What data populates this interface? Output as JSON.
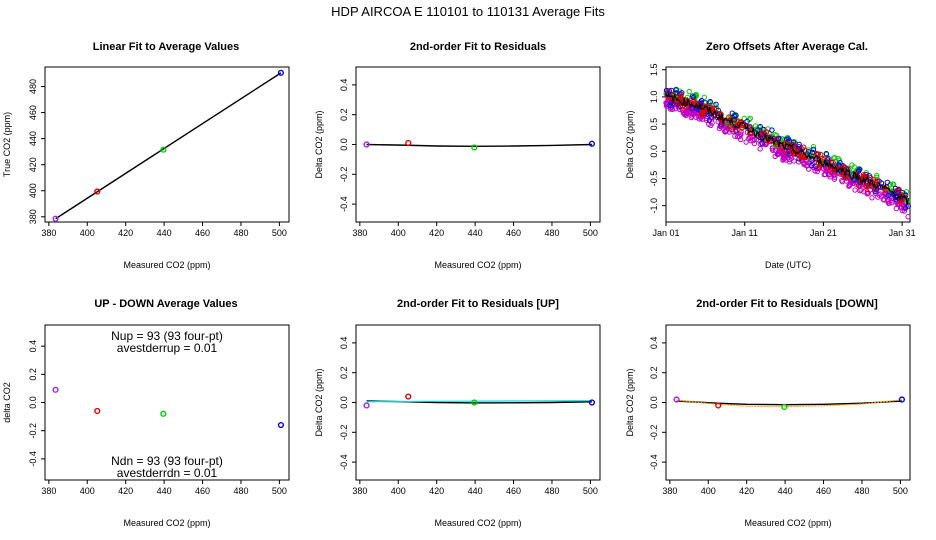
{
  "page_title": "HDP   AIRCOA E   110101 to 110131   Average Fits",
  "colors": {
    "purple": "#a020f0",
    "red": "#e00000",
    "green": "#00cc00",
    "blue": "#0000dd",
    "black": "#000000",
    "cyan": "#00e0e0",
    "orange": "#ffa500",
    "magenta": "#c000c0"
  },
  "chart_data": [
    {
      "type": "scatter",
      "title": "Linear Fit to Average Values",
      "xlabel": "Measured CO2 (ppm)",
      "ylabel": "True CO2 (ppm)",
      "xlim": [
        378,
        505
      ],
      "ylim": [
        376,
        495
      ],
      "xticks": [
        380,
        400,
        420,
        440,
        460,
        480,
        500
      ],
      "yticks": [
        380,
        400,
        420,
        440,
        460,
        480
      ],
      "points": [
        {
          "x": 383.5,
          "y": 378.5,
          "color": "purple"
        },
        {
          "x": 405.2,
          "y": 399.4,
          "color": "red"
        },
        {
          "x": 439.6,
          "y": 431.5,
          "color": "green"
        },
        {
          "x": 500.8,
          "y": 490.5,
          "color": "blue"
        }
      ],
      "lines": [
        {
          "x": [
            383.5,
            500.8
          ],
          "y": [
            378.5,
            490.5
          ],
          "color": "black"
        }
      ]
    },
    {
      "type": "scatter",
      "title": "2nd-order Fit to Residuals",
      "xlabel": "Measured CO2 (ppm)",
      "ylabel": "Delta CO2 (ppm)",
      "xlim": [
        378,
        505
      ],
      "ylim": [
        -0.52,
        0.52
      ],
      "xticks": [
        380,
        400,
        420,
        440,
        460,
        480,
        500
      ],
      "yticks": [
        -0.4,
        -0.2,
        0.0,
        0.2,
        0.4
      ],
      "points": [
        {
          "x": 383.5,
          "y": 0.0,
          "color": "purple"
        },
        {
          "x": 405.2,
          "y": 0.01,
          "color": "red"
        },
        {
          "x": 439.6,
          "y": -0.02,
          "color": "green"
        },
        {
          "x": 500.8,
          "y": 0.005,
          "color": "blue"
        }
      ],
      "lines": [
        {
          "x": [
            383.5,
            405,
            420,
            440,
            460,
            480,
            500.8
          ],
          "y": [
            0.0,
            -0.005,
            -0.01,
            -0.012,
            -0.01,
            -0.006,
            0.0
          ],
          "color": "black"
        }
      ]
    },
    {
      "type": "scatter",
      "title": "Zero Offsets After Average Cal.",
      "xlabel": "Date (UTC)",
      "ylabel": "Delta CO2 (ppm)",
      "xlim": [
        "Jan 01",
        "Jan 32"
      ],
      "ylim": [
        -1.3,
        1.55
      ],
      "xticks": [
        "Jan 01",
        "Jan 11",
        "Jan 21",
        "Jan 31"
      ],
      "yticks": [
        -1.0,
        -0.5,
        0.0,
        0.5,
        1.0,
        1.5
      ],
      "trend": {
        "x": [
          "Jan 01",
          "Jan 05",
          "Jan 09",
          "Jan 11",
          "Jan 15",
          "Jan 21",
          "Jan 25",
          "Jan 29",
          "Jan 32"
        ],
        "y": [
          1.0,
          0.85,
          0.55,
          0.45,
          0.15,
          -0.2,
          -0.45,
          -0.7,
          -0.95
        ]
      },
      "series_colors": [
        "magenta",
        "green",
        "blue",
        "red",
        "black"
      ]
    },
    {
      "type": "scatter",
      "title": "UP - DOWN Average Values",
      "xlabel": "Measured CO2 (ppm)",
      "ylabel": "delta CO2",
      "xlim": [
        378,
        505
      ],
      "ylim": [
        -0.55,
        0.55
      ],
      "xticks": [
        380,
        400,
        420,
        440,
        460,
        480,
        500
      ],
      "yticks": [
        -0.4,
        -0.2,
        0.0,
        0.2,
        0.4
      ],
      "points": [
        {
          "x": 383.5,
          "y": 0.09,
          "color": "purple"
        },
        {
          "x": 405.2,
          "y": -0.06,
          "color": "red"
        },
        {
          "x": 439.6,
          "y": -0.08,
          "color": "green"
        },
        {
          "x": 500.8,
          "y": -0.16,
          "color": "blue"
        }
      ],
      "annotations": {
        "nup": "Nup = 93 (93 four-pt)",
        "avestderrup": "avestderrup =  0.01",
        "ndn": "Ndn = 93 (93 four-pt)",
        "avestderrdn": "avestderrdn =  0.01"
      }
    },
    {
      "type": "scatter",
      "title": "2nd-order Fit to Residuals [UP]",
      "xlabel": "Measured CO2 (ppm)",
      "ylabel": "Delta CO2 (ppm)",
      "xlim": [
        378,
        505
      ],
      "ylim": [
        -0.52,
        0.52
      ],
      "xticks": [
        380,
        400,
        420,
        440,
        460,
        480,
        500
      ],
      "yticks": [
        -0.4,
        -0.2,
        0.0,
        0.2,
        0.4
      ],
      "points": [
        {
          "x": 383.5,
          "y": -0.02,
          "color": "purple"
        },
        {
          "x": 405.2,
          "y": 0.04,
          "color": "red"
        },
        {
          "x": 439.6,
          "y": 0.0,
          "color": "green"
        },
        {
          "x": 500.8,
          "y": 0.0,
          "color": "blue"
        }
      ],
      "lines": [
        {
          "x": [
            383.5,
            405,
            420,
            440,
            460,
            480,
            500.8
          ],
          "y": [
            0.01,
            0.005,
            0.0,
            -0.003,
            -0.002,
            0.0,
            0.005
          ],
          "color": "black"
        },
        {
          "x": [
            383.5,
            420,
            460,
            500.8
          ],
          "y": [
            0.005,
            0.008,
            0.01,
            0.012
          ],
          "color": "cyan"
        }
      ]
    },
    {
      "type": "scatter",
      "title": "2nd-order Fit to Residuals [DOWN]",
      "xlabel": "Measured CO2 (ppm)",
      "ylabel": "Delta CO2 (ppm)",
      "xlim": [
        378,
        505
      ],
      "ylim": [
        -0.52,
        0.52
      ],
      "xticks": [
        380,
        400,
        420,
        440,
        460,
        480,
        500
      ],
      "yticks": [
        -0.4,
        -0.2,
        0.0,
        0.2,
        0.4
      ],
      "points": [
        {
          "x": 383.5,
          "y": 0.02,
          "color": "purple"
        },
        {
          "x": 405.2,
          "y": -0.02,
          "color": "red"
        },
        {
          "x": 439.6,
          "y": -0.03,
          "color": "green"
        },
        {
          "x": 500.8,
          "y": 0.02,
          "color": "blue"
        }
      ],
      "lines": [
        {
          "x": [
            383.5,
            405,
            420,
            440,
            460,
            480,
            500.8
          ],
          "y": [
            0.01,
            -0.005,
            -0.012,
            -0.015,
            -0.012,
            -0.005,
            0.01
          ],
          "color": "black"
        },
        {
          "x": [
            383.5,
            405,
            420,
            440,
            460,
            480,
            500.8
          ],
          "y": [
            0.015,
            -0.012,
            -0.025,
            -0.028,
            -0.022,
            -0.01,
            0.018
          ],
          "color": "orange"
        }
      ]
    }
  ]
}
